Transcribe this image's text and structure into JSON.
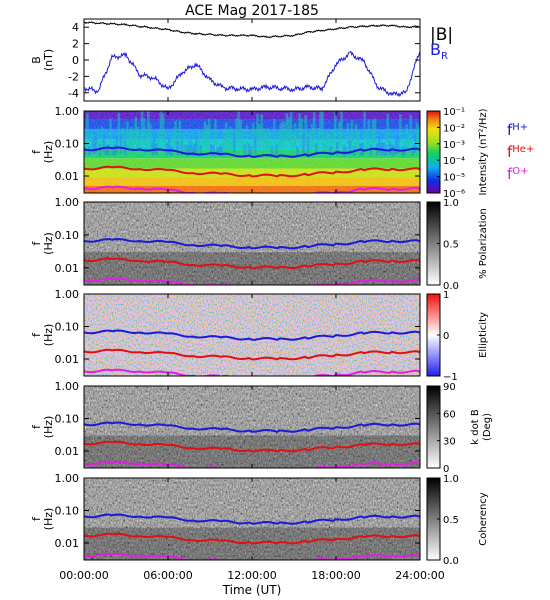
{
  "title": "ACE Mag 2017-185",
  "legend_b": {
    "total": "|B|",
    "radial": "B",
    "radial_sub": "R"
  },
  "legend_f": [
    {
      "main": "f",
      "sub": "H+",
      "color": "#1a1ad8"
    },
    {
      "main": "f",
      "sub": "He+",
      "color": "#e01010"
    },
    {
      "main": "f",
      "sub": "O+",
      "color": "#e020e0"
    }
  ],
  "colors": {
    "bmag": "#000000",
    "br": "#1a1ad8",
    "h": "#1a1ad8",
    "he": "#e01010",
    "o": "#e020e0"
  },
  "x_axis": {
    "label": "Time (UT)",
    "ticks": [
      "00:00:00",
      "06:00:00",
      "12:00:00",
      "18:00:00",
      "24:00:00"
    ]
  },
  "panels": [
    {
      "ylabel_main": "B",
      "ylabel_sub": "(nT)",
      "yticks": [
        "4",
        "2",
        "0",
        "-2",
        "-4"
      ]
    },
    {
      "ylabel_main": "f",
      "ylabel_sub": "(Hz)",
      "yticks": [
        "1.00",
        "0.10",
        "0.01"
      ],
      "cbar_label": "Intensity (nT²/Hz)",
      "cbar_ticks": [
        "10⁻¹",
        "10⁻²",
        "10⁻³",
        "10⁻⁴",
        "10⁻⁵",
        "10⁻⁶"
      ]
    },
    {
      "ylabel_main": "f",
      "ylabel_sub": "(Hz)",
      "yticks": [
        "1.00",
        "0.10",
        "0.01"
      ],
      "cbar_label": "% Polarization",
      "cbar_ticks": [
        "1.0",
        "0.5",
        "0.0"
      ]
    },
    {
      "ylabel_main": "f",
      "ylabel_sub": "(Hz)",
      "yticks": [
        "1.00",
        "0.10",
        "0.01"
      ],
      "cbar_label": "Ellipticity",
      "cbar_ticks": [
        "1",
        "0",
        "−1"
      ]
    },
    {
      "ylabel_main": "f",
      "ylabel_sub": "(Hz)",
      "yticks": [
        "1.00",
        "0.10",
        "0.01"
      ],
      "cbar_label": "k dot B",
      "cbar_label2": "(Deg)",
      "cbar_ticks": [
        "90",
        "60",
        "30",
        "0"
      ]
    },
    {
      "ylabel_main": "f",
      "ylabel_sub": "(Hz)",
      "yticks": [
        "1.00",
        "0.10",
        "0.01"
      ],
      "cbar_label": "Coherency",
      "cbar_ticks": [
        "1.0",
        "0.5",
        "0.0"
      ]
    }
  ],
  "chart_data": [
    {
      "type": "line",
      "title": "ACE Mag 2017-185",
      "xlabel": "Time (UT)",
      "ylabel": "B (nT)",
      "xlim": [
        0,
        24
      ],
      "ylim": [
        -5,
        5
      ],
      "x": [
        0,
        1,
        2,
        3,
        4,
        5,
        6,
        7,
        8,
        9,
        10,
        11,
        12,
        13,
        14,
        15,
        16,
        17,
        18,
        19,
        20,
        21,
        22,
        23,
        24
      ],
      "series": [
        {
          "name": "|B|",
          "values": [
            4.6,
            4.5,
            4.4,
            4.3,
            4.1,
            3.9,
            3.7,
            3.4,
            3.2,
            3.1,
            3.0,
            3.0,
            3.0,
            2.8,
            2.9,
            3.0,
            3.4,
            3.6,
            3.8,
            4.0,
            4.1,
            4.2,
            4.2,
            4.0,
            4.1
          ]
        },
        {
          "name": "B_R",
          "values": [
            -3.4,
            -3.8,
            0.3,
            0.6,
            -1.8,
            -2.2,
            -3.6,
            -1.5,
            -0.5,
            -2.5,
            -3.4,
            -3.5,
            -3.6,
            -3.3,
            -3.4,
            -3.6,
            -3.3,
            -3.5,
            -0.5,
            0.8,
            -0.2,
            -3.3,
            -4.2,
            -4.0,
            1.2
          ]
        }
      ]
    },
    {
      "type": "heatmap",
      "ylabel": "f (Hz)",
      "yscale": "log",
      "ylim": [
        0.003,
        1.0
      ],
      "xlim": [
        0,
        24
      ],
      "colorbar": {
        "label": "Intensity (nT²/Hz)",
        "scale": "log",
        "range": [
          1e-06,
          0.1
        ]
      },
      "overlays": [
        {
          "name": "f_H+",
          "x": [
            0,
            2,
            4,
            6,
            8,
            10,
            12,
            14,
            16,
            18,
            20,
            22,
            24
          ],
          "values": [
            0.066,
            0.07,
            0.068,
            0.058,
            0.05,
            0.045,
            0.042,
            0.04,
            0.045,
            0.052,
            0.062,
            0.066,
            0.064
          ]
        },
        {
          "name": "f_He+",
          "x": [
            0,
            2,
            4,
            6,
            8,
            10,
            12,
            14,
            16,
            18,
            20,
            22,
            24
          ],
          "values": [
            0.017,
            0.018,
            0.017,
            0.0145,
            0.0125,
            0.0113,
            0.0105,
            0.01,
            0.0113,
            0.013,
            0.0155,
            0.0165,
            0.016
          ]
        },
        {
          "name": "f_O+",
          "x": [
            0,
            2,
            4,
            6,
            8,
            10,
            12,
            14,
            16,
            18,
            20,
            22,
            24
          ],
          "values": [
            0.0042,
            0.0044,
            0.0043,
            0.0036,
            0.0031,
            0.0028,
            0.0026,
            0.0025,
            0.0028,
            0.0032,
            0.0039,
            0.0041,
            0.004
          ]
        }
      ]
    },
    {
      "type": "heatmap",
      "ylabel": "f (Hz)",
      "yscale": "log",
      "ylim": [
        0.003,
        1.0
      ],
      "xlim": [
        0,
        24
      ],
      "colorbar": {
        "label": "% Polarization",
        "range": [
          0.0,
          1.0
        ]
      }
    },
    {
      "type": "heatmap",
      "ylabel": "f (Hz)",
      "yscale": "log",
      "ylim": [
        0.003,
        1.0
      ],
      "xlim": [
        0,
        24
      ],
      "colorbar": {
        "label": "Ellipticity",
        "range": [
          -1,
          1
        ]
      }
    },
    {
      "type": "heatmap",
      "ylabel": "f (Hz)",
      "yscale": "log",
      "ylim": [
        0.003,
        1.0
      ],
      "xlim": [
        0,
        24
      ],
      "colorbar": {
        "label": "k dot B (Deg)",
        "range": [
          0,
          90
        ]
      }
    },
    {
      "type": "heatmap",
      "ylabel": "f (Hz)",
      "yscale": "log",
      "ylim": [
        0.003,
        1.0
      ],
      "xlim": [
        0,
        24
      ],
      "colorbar": {
        "label": "Coherency",
        "range": [
          0.0,
          1.0
        ]
      }
    }
  ]
}
